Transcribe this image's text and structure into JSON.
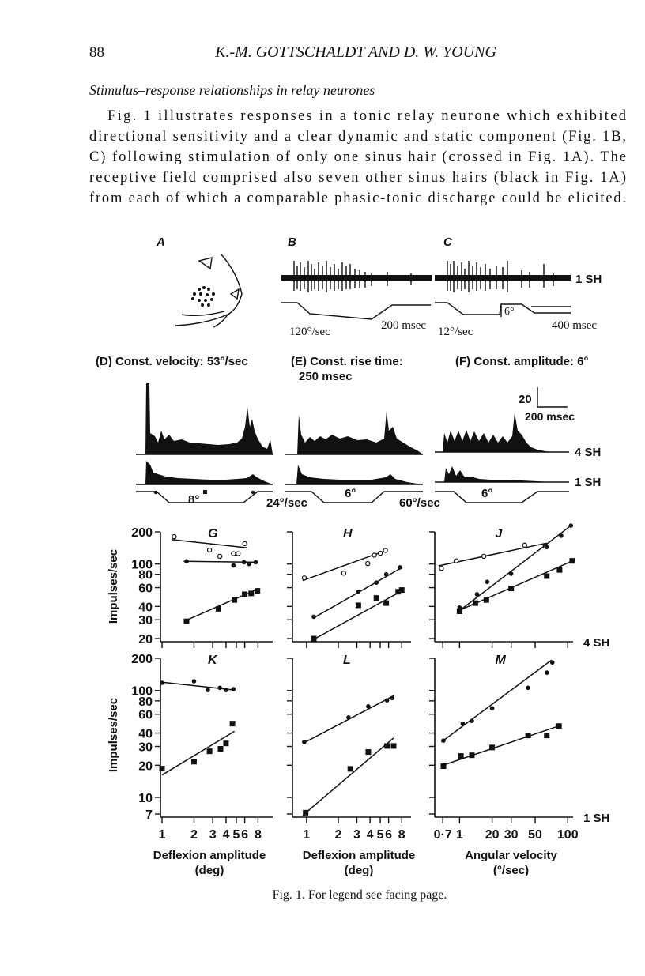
{
  "header": {
    "page_number": "88",
    "running_head": "K.-M. GOTTSCHALDT AND D. W. YOUNG"
  },
  "section_title": "Stimulus–response relationships in relay neurones",
  "paragraph_lines": [
    "Fig. 1 illustrates responses in a tonic relay neurone which exhibited",
    "directional sensitivity and a clear dynamic and static component (Fig. 1B,",
    "C) following stimulation of only one sinus hair (crossed in Fig. 1A). The",
    "receptive field comprised also seven other sinus hairs (black in Fig. 1A)",
    "from each of which a comparable phasic-tonic discharge could be elicited."
  ],
  "figure": {
    "top": {
      "panel_a": "A",
      "panel_b": "B",
      "panel_c": "C",
      "trace_label": "1 SH",
      "b_velocity": "120°/sec",
      "b_time": "200 msec",
      "c_velocity": "12°/sec",
      "c_amplitude": "6°",
      "c_time": "400 msec"
    },
    "histograms": {
      "d_title": "(D) Const. velocity: 53°/sec",
      "e_title_1": "(E) Const. rise time:",
      "e_title_2": "250 msec",
      "f_title": "(F) Const. amplitude: 6°",
      "scale_count": "20",
      "scale_time": "200 msec",
      "upper_label": "4 SH",
      "lower_label": "1 SH",
      "d_amplitude": "8°",
      "d_velocity": "24°/sec",
      "e_amplitude": "6°",
      "e_velocity": "60°/sec",
      "f_amplitude": "6°"
    },
    "y_title": "Impulses/sec",
    "columns": [
      {
        "xlim": [
          1,
          11
        ],
        "xticks": [
          1,
          2,
          3,
          4,
          5,
          6,
          8
        ],
        "title": "Deflexion amplitude",
        "unit": "(deg)"
      },
      {
        "xlim": [
          0.76,
          9.8
        ],
        "xticks": [
          1,
          2,
          3,
          4,
          5,
          6,
          8
        ],
        "title": "Deflexion amplitude",
        "unit": "(deg)"
      },
      {
        "xlim": [
          6.1,
          112
        ],
        "xticks": [
          {
            "value": 7,
            "label": "0·7"
          },
          {
            "value": 10,
            "label": "1"
          },
          20,
          30,
          50,
          100
        ],
        "title": "Angular velocity",
        "unit": "(°/sec)"
      }
    ],
    "rows": [
      {
        "ylim": [
          20,
          200
        ],
        "yticks": [
          200,
          100,
          80,
          60,
          40,
          30,
          20
        ],
        "side_label": "4 SH",
        "panels": [
          {
            "label": "G",
            "series": [
              {
                "marker": "open-circle",
                "x": [
                  1.3,
                  2.8,
                  3.5,
                  4.7,
                  5.2,
                  6.0
                ],
                "y": [
                  180,
                  135,
                  118,
                  125,
                  125,
                  155
                ],
                "fit_x": [
                  1.25,
                  6.3
                ],
                "fit_y": [
                  169,
                  142
                ]
              },
              {
                "marker": "filled-circle",
                "x": [
                  1.7,
                  4.7,
                  5.9,
                  6.6,
                  7.6
                ],
                "y": [
                  106,
                  97,
                  104,
                  100,
                  104
                ],
                "fit_x": [
                  1.6,
                  7.9
                ],
                "fit_y": [
                  106,
                  104
                ]
              },
              {
                "marker": "filled-square",
                "x": [
                  1.7,
                  3.4,
                  4.8,
                  6.0,
                  6.9,
                  7.9
                ],
                "y": [
                  29,
                  38,
                  46,
                  52,
                  53,
                  56
                ],
                "fit_x": [
                  1.6,
                  7.9
                ],
                "fit_y": [
                  29,
                  58
                ]
              }
            ]
          },
          {
            "label": "H",
            "series": [
              {
                "marker": "open-circle",
                "x": [
                  0.95,
                  2.25,
                  3.8,
                  4.4,
                  5.0,
                  5.6
                ],
                "y": [
                  74,
                  82,
                  101,
                  121,
                  126,
                  134
                ],
                "fit_x": [
                  0.92,
                  5.8
                ],
                "fit_y": [
                  70,
                  135
                ]
              },
              {
                "marker": "filled-circle",
                "x": [
                  1.17,
                  3.1,
                  4.6,
                  5.7,
                  7.7
                ],
                "y": [
                  32,
                  55,
                  67,
                  80,
                  93
                ],
                "fit_x": [
                  1.15,
                  8.1
                ],
                "fit_y": [
                  31,
                  93
                ]
              },
              {
                "marker": "filled-square",
                "x": [
                  1.17,
                  3.1,
                  4.6,
                  5.7,
                  7.4,
                  8.0
                ],
                "y": [
                  20,
                  41,
                  48,
                  43,
                  55,
                  57
                ],
                "fit_x": [
                  1.1,
                  8.3
                ],
                "fit_y": [
                  19,
                  57
                ]
              }
            ]
          },
          {
            "label": "J",
            "series": [
              {
                "marker": "open-circle",
                "x": [
                  6.8,
                  9.3,
                  16.8,
                  40,
                  62
                ],
                "y": [
                  91,
                  107,
                  118,
                  150,
                  148
                ],
                "fit_x": [
                  6.4,
                  64
                ],
                "fit_y": [
                  96,
                  157
                ]
              },
              {
                "marker": "filled-circle",
                "x": [
                  10,
                  14.5,
                  18,
                  30,
                  64,
                  87,
                  107
                ],
                "y": [
                  39,
                  52,
                  68,
                  81,
                  144,
                  184,
                  229
                ],
                "fit_x": [
                  9.8,
                  107
                ],
                "fit_y": [
                  36,
                  229
                ]
              },
              {
                "marker": "filled-square",
                "x": [
                  10,
                  14,
                  17.7,
                  30,
                  64,
                  84,
                  110
                ],
                "y": [
                  36,
                  43,
                  46,
                  59,
                  77,
                  88,
                  107
                ],
                "fit_x": [
                  9.5,
                  111
                ],
                "fit_y": [
                  36,
                  107
                ]
              }
            ]
          }
        ]
      },
      {
        "ylim": [
          7,
          200
        ],
        "yticks": [
          200,
          100,
          80,
          60,
          40,
          30,
          20,
          10,
          7
        ],
        "side_label": "1 SH",
        "panels": [
          {
            "label": "K",
            "series": [
              {
                "marker": "filled-circle",
                "x": [
                  1,
                  2.0,
                  2.7,
                  3.5,
                  4.0,
                  4.7
                ],
                "y": [
                  118,
                  122,
                  101,
                  106,
                  101,
                  103
                ],
                "fit_x": [
                  0.97,
                  4.8
                ],
                "fit_y": [
                  120,
                  101
                ]
              },
              {
                "marker": "filled-square",
                "x": [
                  1,
                  2.0,
                  2.8,
                  3.55,
                  4.0,
                  4.6
                ],
                "y": [
                  18.6,
                  21.6,
                  27,
                  28.5,
                  32,
                  49
                ],
                "fit_x": [
                  1,
                  4.8
                ],
                "fit_y": [
                  16.2,
                  41.5
                ]
              }
            ]
          },
          {
            "label": "L",
            "series": [
              {
                "marker": "filled-circle",
                "x": [
                  0.95,
                  2.5,
                  3.85,
                  5.8,
                  6.5
                ],
                "y": [
                  33,
                  56,
                  71,
                  81,
                  85
                ],
                "fit_x": [
                  0.92,
                  6.8
                ],
                "fit_y": [
                  32,
                  90
                ]
              },
              {
                "marker": "filled-square",
                "x": [
                  0.98,
                  2.6,
                  3.85,
                  5.8,
                  6.7
                ],
                "y": [
                  7.2,
                  18.5,
                  26.6,
                  30.3,
                  30.3
                ],
                "fit_x": [
                  0.92,
                  6.7
                ],
                "fit_y": [
                  6.8,
                  36
                ]
              }
            ]
          },
          {
            "label": "M",
            "series": [
              {
                "marker": "filled-circle",
                "x": [
                  7.1,
                  10.7,
                  13,
                  20,
                  43,
                  64,
                  72
                ],
                "y": [
                  34,
                  49,
                  52,
                  68,
                  106,
                  147,
                  183
                ],
                "fit_x": [
                  6.8,
                  71
                ],
                "fit_y": [
                  33,
                  193
                ]
              },
              {
                "marker": "filled-square",
                "x": [
                  7.1,
                  10.3,
                  13,
                  20,
                  43,
                  64,
                  83
                ],
                "y": [
                  19.6,
                  24.4,
                  24.8,
                  29.3,
                  38,
                  38,
                  46.5
                ],
                "fit_x": [
                  6.8,
                  85
                ],
                "fit_y": [
                  19.8,
                  47
                ]
              }
            ]
          }
        ]
      }
    ],
    "caption": "Fig. 1. For legend see facing page."
  }
}
